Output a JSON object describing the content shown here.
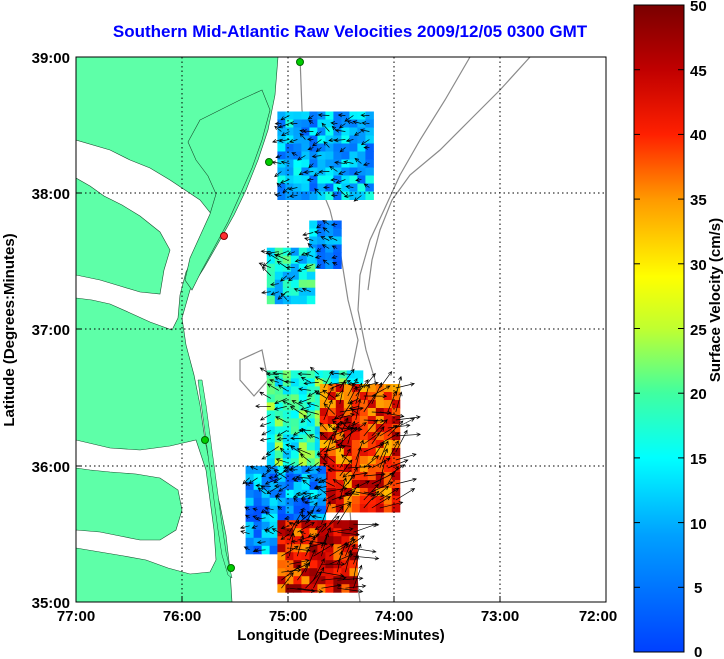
{
  "chart_data": {
    "type": "heatmap",
    "title": "Southern Mid-Atlantic Raw Velocities 2009/12/05 0300 GMT",
    "xlabel": "Longitude (Degrees:Minutes)",
    "ylabel": "Latitude (Degrees:Minutes)",
    "colorbar_label": "Surface Velocity (cm/s)",
    "x_ticks": [
      "77:00",
      "76:00",
      "75:00",
      "74:00",
      "73:00",
      "72:00"
    ],
    "y_ticks": [
      "39:00",
      "38:00",
      "37:00",
      "36:00",
      "35:00"
    ],
    "colorbar_ticks": [
      "50",
      "45",
      "40",
      "35",
      "30",
      "25",
      "20",
      "15",
      "10",
      "5",
      "0"
    ],
    "xlim": [
      -77,
      -72
    ],
    "ylim": [
      35,
      39
    ],
    "clim": [
      0,
      50
    ],
    "grid": true,
    "regions": [
      {
        "lon": [
          -75.1,
          -74.2
        ],
        "lat": [
          38.0,
          38.6
        ],
        "velocity": 10
      },
      {
        "lon": [
          -74.8,
          -74.5
        ],
        "lat": [
          37.5,
          37.8
        ],
        "velocity": 9
      },
      {
        "lon": [
          -75.2,
          -74.8
        ],
        "lat": [
          37.2,
          37.6
        ],
        "velocity": 15
      },
      {
        "lon": [
          -75.2,
          -74.3
        ],
        "lat": [
          35.8,
          36.7
        ],
        "velocity": 18
      },
      {
        "lon": [
          -74.7,
          -74.0
        ],
        "lat": [
          35.7,
          36.6
        ],
        "velocity": 40
      },
      {
        "lon": [
          -75.4,
          -74.7
        ],
        "lat": [
          35.4,
          36.0
        ],
        "velocity": 8
      },
      {
        "lon": [
          -75.1,
          -74.4
        ],
        "lat": [
          35.1,
          35.6
        ],
        "velocity": 42
      }
    ],
    "colors": {
      "land": "#5effa8",
      "contour": "#8a8a8a",
      "arrows": "#000000",
      "title": "#0000ff"
    }
  }
}
